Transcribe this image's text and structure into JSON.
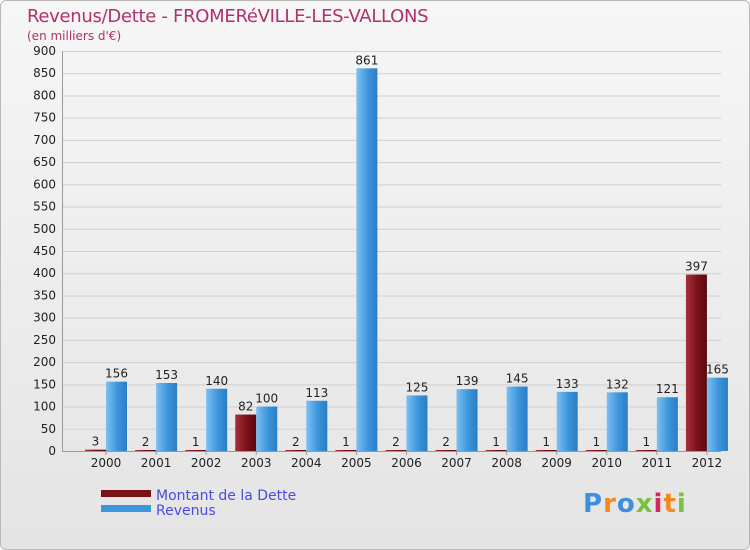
{
  "title": "Revenus/Dette - FROMERéVILLE-LES-VALLONS",
  "subtitle": "(en milliers d'€)",
  "logo": {
    "text": "Proxiti",
    "letter_colors": [
      "#3f8fe0",
      "#f28a1e",
      "#3f8fe0",
      "#7ac142",
      "#d6285c",
      "#f28a1e",
      "#7ac142"
    ]
  },
  "colors": {
    "dette": "#7a1018",
    "revenus": "#3d95dc",
    "grid": "#cfcfcf",
    "axis_text": "#222222"
  },
  "chart_data": {
    "type": "bar",
    "title": "Revenus/Dette - FROMERéVILLE-LES-VALLONS",
    "ylabel": "(en milliers d'€)",
    "xlabel": "",
    "ylim": [
      0,
      900
    ],
    "yticks": [
      0,
      50,
      100,
      150,
      200,
      250,
      300,
      350,
      400,
      450,
      500,
      550,
      600,
      650,
      700,
      750,
      800,
      850,
      900
    ],
    "grid": true,
    "legend_position": "bottom-left",
    "categories": [
      "2000",
      "2001",
      "2002",
      "2003",
      "2004",
      "2005",
      "2006",
      "2007",
      "2008",
      "2009",
      "2010",
      "2011",
      "2012"
    ],
    "series": [
      {
        "name": "Montant de la Dette",
        "values": [
          3,
          2,
          1,
          82,
          2,
          1,
          2,
          2,
          1,
          1,
          1,
          1,
          397
        ]
      },
      {
        "name": "Revenus",
        "values": [
          156,
          153,
          140,
          100,
          113,
          861,
          125,
          139,
          145,
          133,
          132,
          121,
          165
        ]
      }
    ]
  }
}
